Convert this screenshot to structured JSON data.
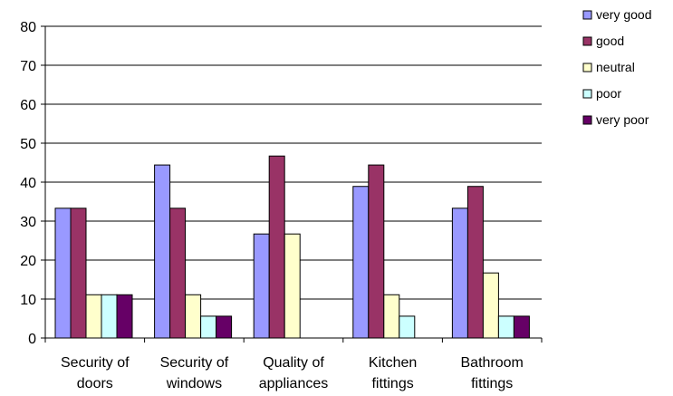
{
  "chart_data": {
    "type": "bar",
    "title": "",
    "xlabel": "",
    "ylabel": "",
    "ylim": [
      0,
      80
    ],
    "y_ticks": [
      0,
      10,
      20,
      30,
      40,
      50,
      60,
      70,
      80
    ],
    "y_tick_labels": [
      "0",
      "10",
      "20",
      "30",
      "40",
      "50",
      "60",
      "70",
      "80"
    ],
    "grid": true,
    "legend_position": "top-right",
    "categories": [
      [
        "Security of",
        "doors"
      ],
      [
        "Security of",
        "windows"
      ],
      [
        "Quality of",
        "appliances"
      ],
      [
        "Kitchen",
        "fittings"
      ],
      [
        "Bathroom",
        "fittings"
      ]
    ],
    "series": [
      {
        "name": "very good",
        "color": "#9999FF",
        "values": [
          33.3,
          44.4,
          26.7,
          38.9,
          33.3
        ]
      },
      {
        "name": "good",
        "color": "#993366",
        "values": [
          33.3,
          33.3,
          46.7,
          44.4,
          38.9
        ]
      },
      {
        "name": "neutral",
        "color": "#FFFFCC",
        "values": [
          11.1,
          11.1,
          26.7,
          11.1,
          16.7
        ]
      },
      {
        "name": "poor",
        "color": "#CCFFFF",
        "values": [
          11.1,
          5.6,
          0,
          5.6,
          5.6
        ]
      },
      {
        "name": "very poor",
        "color": "#660066",
        "values": [
          11.1,
          5.6,
          0,
          0,
          5.6
        ]
      }
    ]
  }
}
